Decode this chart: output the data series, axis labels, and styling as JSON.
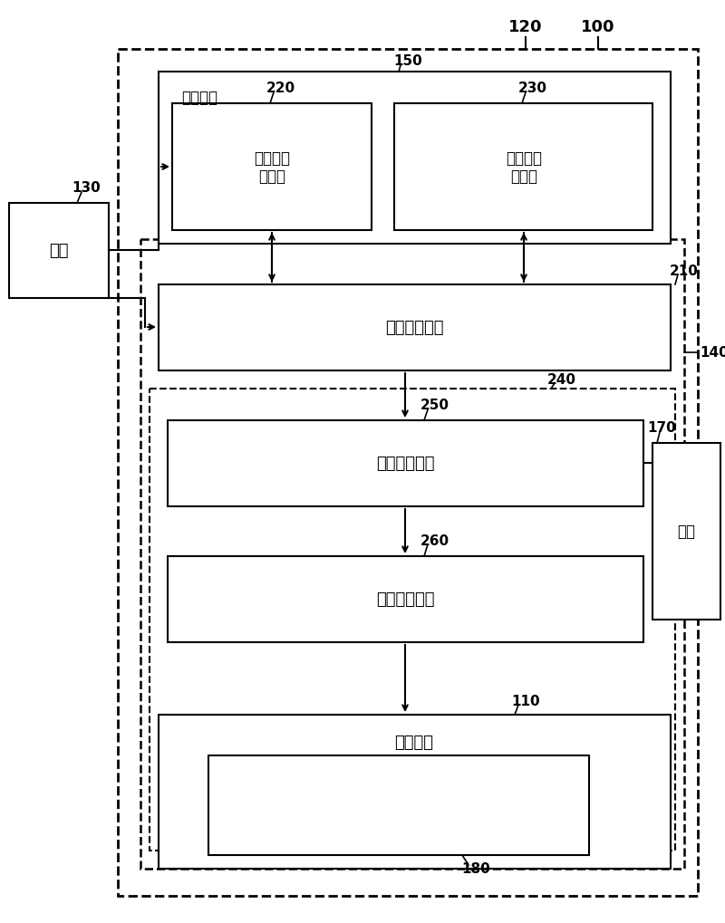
{
  "bg_color": "#ffffff",
  "line_color": "#000000",
  "box_fill": "#ffffff",
  "fig_width": 8.0,
  "fig_height": 10.2,
  "labels": {
    "100": "100",
    "120": "120",
    "130": "130",
    "140": "140",
    "150": "150",
    "170": "170",
    "180": "180",
    "210": "210",
    "220": "220",
    "230": "230",
    "240": "240",
    "250": "250",
    "260": "260",
    "110": "110"
  },
  "box_texts": {
    "host": "主机",
    "storage": "存储单元",
    "img_input": "图像输入\n缓冲区",
    "img_update": "图像更新\n缓冲区",
    "frame_proc": "画面处理单元",
    "update_op": "更新操作单元",
    "clock_gen": "时钟产生单元",
    "display_panel": "显示面板",
    "flash": "闪存"
  }
}
